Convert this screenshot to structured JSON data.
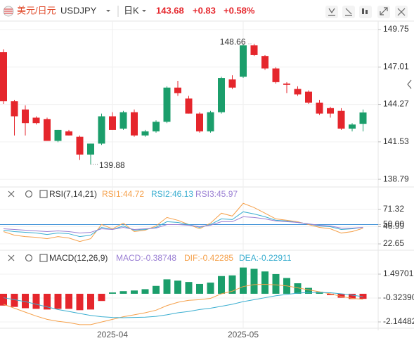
{
  "header": {
    "pair": "美元/日元",
    "symbol": "USDJPY",
    "period": "日K",
    "price": "143.68",
    "change": "+0.83",
    "change_pct": "+0.58%"
  },
  "chart_data": [
    {
      "type": "candlestick",
      "categories": [
        null,
        null,
        null,
        null,
        null,
        null,
        null,
        null,
        null,
        null,
        "2025-04",
        null,
        null,
        null,
        null,
        null,
        null,
        null,
        null,
        null,
        null,
        null,
        "2025-05",
        null,
        null,
        null,
        null,
        null,
        null,
        null,
        null,
        null,
        null,
        null
      ],
      "open": [
        148.1,
        144.5,
        143.9,
        143.3,
        143.2,
        141.6,
        142.3,
        141.9,
        140.6,
        141.4,
        143.4,
        142.5,
        143.7,
        142.0,
        142.3,
        143.0,
        145.5,
        144.7,
        143.6,
        142.3,
        143.7,
        146.1,
        146.3,
        148.6,
        147.8,
        146.9,
        145.8,
        145.4,
        145.2,
        144.4,
        144.0,
        143.8,
        142.5,
        142.85
      ],
      "high": [
        148.3,
        144.6,
        144.2,
        143.4,
        143.3,
        142.4,
        142.4,
        142.0,
        141.4,
        143.6,
        143.7,
        143.8,
        143.9,
        142.4,
        143.1,
        145.6,
        146.0,
        144.9,
        143.7,
        143.8,
        146.3,
        146.4,
        148.66,
        148.7,
        147.9,
        147.0,
        145.9,
        145.6,
        145.3,
        144.6,
        144.1,
        144.0,
        142.9,
        143.9
      ],
      "low": [
        144.3,
        142.0,
        142.0,
        142.8,
        141.6,
        141.5,
        142.0,
        140.2,
        139.88,
        141.3,
        142.4,
        142.4,
        141.9,
        141.9,
        142.2,
        142.9,
        144.9,
        143.6,
        142.2,
        142.2,
        143.6,
        145.4,
        146.2,
        147.8,
        146.8,
        145.8,
        145.1,
        144.9,
        144.3,
        143.5,
        143.3,
        142.4,
        142.3,
        142.3
      ],
      "close": [
        144.5,
        143.4,
        142.9,
        142.9,
        141.6,
        142.4,
        142.0,
        140.6,
        141.4,
        143.4,
        142.4,
        143.7,
        142.0,
        142.3,
        143.0,
        145.5,
        145.1,
        143.6,
        142.3,
        143.7,
        146.2,
        145.5,
        148.6,
        147.9,
        146.9,
        145.9,
        145.7,
        145.0,
        144.4,
        143.6,
        143.6,
        142.5,
        142.8,
        143.68
      ],
      "up_color": "#1b9e6b",
      "down_color": "#e5262c",
      "high_label": "148.66",
      "low_label": "139.88",
      "ylim": [
        138.28,
        150.37
      ],
      "yticks": [
        149.75,
        147.01,
        144.27,
        141.53,
        138.79
      ],
      "grid": true
    },
    {
      "type": "line",
      "title": "RSI(7,14,21)",
      "series": [
        {
          "name": "RSI1:44.72",
          "color": "#f5a04a",
          "values": [
            40,
            35,
            33,
            32,
            30,
            33,
            31,
            26,
            30,
            50,
            44,
            52,
            40,
            42,
            48,
            60,
            56,
            50,
            44,
            52,
            66,
            62,
            80,
            74,
            66,
            58,
            56,
            54,
            50,
            46,
            44,
            38,
            40,
            44.72
          ]
        },
        {
          "name": "RSI2:46.13",
          "color": "#3aaed0",
          "values": [
            42,
            40,
            39,
            38,
            36,
            38,
            37,
            33,
            35,
            46,
            43,
            48,
            42,
            43,
            46,
            54,
            53,
            50,
            46,
            50,
            58,
            57,
            68,
            65,
            61,
            56,
            55,
            53,
            51,
            48,
            47,
            43,
            44,
            46.13
          ]
        },
        {
          "name": "RSI3:45.97",
          "color": "#9b80d4",
          "values": [
            44,
            43,
            42,
            41,
            40,
            41,
            40,
            38,
            39,
            44,
            43,
            46,
            43,
            44,
            45,
            50,
            50,
            49,
            47,
            49,
            54,
            54,
            61,
            60,
            58,
            55,
            54,
            53,
            51,
            49,
            48,
            45,
            45,
            45.97
          ]
        }
      ],
      "level": 50,
      "level_color": "#3b8fd6",
      "ylim": [
        17.7,
        86.2
      ],
      "yticks": [
        71.32,
        {
          "value": 50,
          "label": "50.00"
        },
        46.99,
        22.65
      ]
    },
    {
      "type": "combo",
      "title": "MACD(12,26,9)",
      "series": [
        {
          "name": "MACD:-0.38748",
          "type": "bar",
          "color": "#9b80d4",
          "up_color": "#1b9e6b",
          "down_color": "#e5262c",
          "values": [
            -0.9,
            -1.0,
            -1.1,
            -1.15,
            -1.2,
            -1.15,
            -1.15,
            -1.25,
            -1.2,
            -0.55,
            0.1,
            0.2,
            0.25,
            0.35,
            0.6,
            1.1,
            1.0,
            0.9,
            0.75,
            0.85,
            1.35,
            1.4,
            2.0,
            1.9,
            1.7,
            1.5,
            1.2,
            0.8,
            0.45,
            0.15,
            -0.1,
            -0.3,
            -0.4,
            -0.38748
          ]
        },
        {
          "name": "DIF:-0.42285",
          "type": "line",
          "color": "#f5a04a",
          "values": [
            -0.8,
            -1.1,
            -1.4,
            -1.7,
            -1.95,
            -2.1,
            -2.2,
            -2.35,
            -2.35,
            -2.15,
            -1.95,
            -1.75,
            -1.6,
            -1.45,
            -1.25,
            -0.9,
            -0.65,
            -0.5,
            -0.45,
            -0.35,
            0.0,
            0.2,
            0.55,
            0.7,
            0.72,
            0.68,
            0.6,
            0.45,
            0.3,
            0.15,
            0.0,
            -0.2,
            -0.35,
            -0.42285
          ]
        },
        {
          "name": "DEA:-0.22911",
          "type": "line",
          "color": "#3aaed0",
          "values": [
            -0.3,
            -0.45,
            -0.6,
            -0.8,
            -1.0,
            -1.2,
            -1.35,
            -1.5,
            -1.65,
            -1.75,
            -1.8,
            -1.82,
            -1.8,
            -1.78,
            -1.72,
            -1.6,
            -1.45,
            -1.35,
            -1.2,
            -1.1,
            -0.95,
            -0.8,
            -0.6,
            -0.45,
            -0.3,
            -0.15,
            -0.05,
            0.05,
            0.1,
            0.1,
            0.08,
            0.0,
            -0.1,
            -0.22911
          ]
        }
      ],
      "ylim": [
        -2.519,
        2.3
      ],
      "yticks": [
        1.49701,
        {
          "value": -0.3239,
          "label": "-0.32390"
        },
        -2.14482
      ]
    }
  ]
}
